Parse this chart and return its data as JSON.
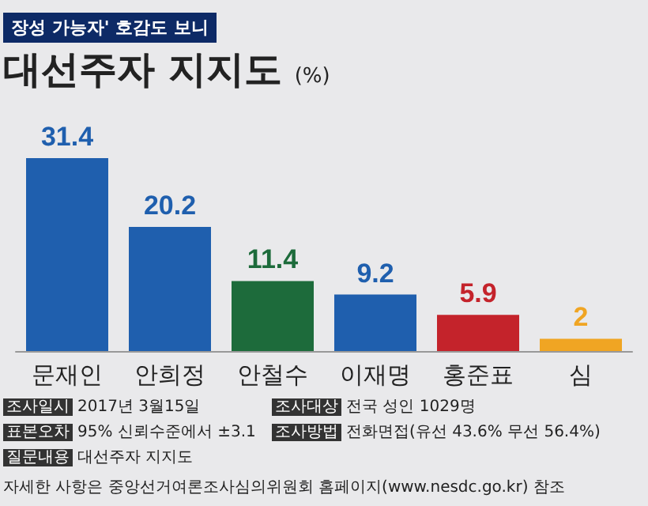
{
  "chart_data": {
    "type": "bar",
    "subtitle": "장성 가능자' 호감도 보니",
    "title": "대선주자 지지도",
    "ylabel": "(%)",
    "categories": [
      "문재인",
      "안희정",
      "안철수",
      "이재명",
      "홍준표",
      "심"
    ],
    "values": [
      31.4,
      20.2,
      11.4,
      9.2,
      5.9,
      2
    ],
    "colors": [
      "#1f5fae",
      "#1f5fae",
      "#1d6b3b",
      "#1f5fae",
      "#c4232b",
      "#f0a523"
    ],
    "value_labels": [
      "31.4",
      "20.2",
      "11.4",
      "9.2",
      "5.9",
      "2"
    ],
    "annotations": [
      "조사일시 2017년 3월15일",
      "조사대상 전국 성인 1029명",
      "표본오차 95% 신뢰수준에서 ±3.1",
      "조사방법 전화면접(유선 43.6% 무선 56.4%)",
      "질문내용 대선주자 지지도",
      "자세한 사항은 중앙선거여론조사심의위원회 홈페이지(www.nesdc.go.kr) 참조"
    ]
  }
}
